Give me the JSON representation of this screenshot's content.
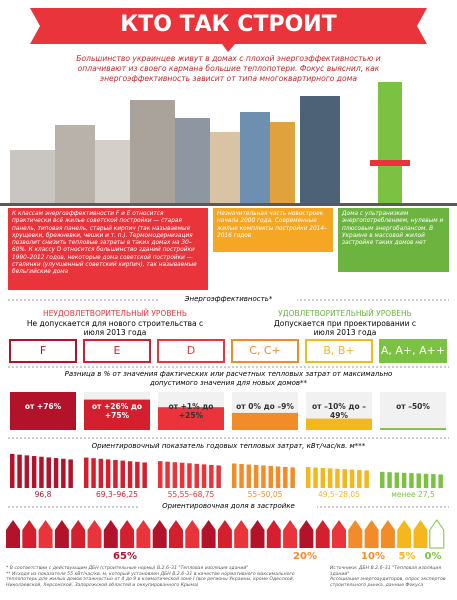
{
  "header": {
    "title": "КТО ТАК СТРОИТ",
    "subtitle": "Большинство украинцев живут в домах с плохой энергоэффективностью и оплачивают из своего кармана большие теплопотери. Фокус выяснил, как энергоэффективность зависит от типа многоквартирного дома"
  },
  "notes": [
    "К классам энергоэффективности F и E относится практически всё жилье советской постройки — старая панель, типовая панель, старый кирпич (так называемые хрущевки, брежневки, чешки и т. п.). Термомодернизация позволит снизить тепловые затраты в таких домах на 30–60%. К классу D относится большинство зданий постройки 1990–2012 годов, некоторые дома советской постройки — сталинки (улучшенный советский кирпич), так называемые бельгийские дома",
    "Незначительная часть новостроек начала 2000 года. Современные жилые комплексы постройки 2014–2016 годов",
    "Дома с ультранизким энергопотреблением, нулевым и плюсовым энергобалансом. В Украине в массовой жилой застройке таких домов нет"
  ],
  "energy": {
    "title": "Энергоэффективность*",
    "bad_label": "НЕУДОВЛЕТВОРИТЕЛЬНЫЙ УРОВЕНЬ",
    "bad_note": "Не допускается для нового строительства с июля 2013 года",
    "good_label": "УДОВЛЕТВОРИТЕЛЬНЫЙ УРОВЕНЬ",
    "good_note": "Допускается при проектировании с июля 2013 года",
    "classes": [
      "F",
      "E",
      "D",
      "C, C+",
      "B, B+",
      "A, A+, A++"
    ]
  },
  "deviation": {
    "title": "Разница в % от значения фактических или расчетных тепловых затрат от максимально допустимого значения для новых домов**",
    "labels": [
      "от +76%",
      "от +26% до +75%",
      "от +1% до +25%",
      "от 0% до –9%",
      "от –10% до –49%",
      "от –50%"
    ]
  },
  "heat": {
    "title": "Ориентировочный показатель годовых тепловых затрат, кВт/час/кв. м***",
    "labels": [
      "96,8",
      "69,3–96,25",
      "55,55–68,75",
      "55–50,05",
      "49,5–28,05",
      "менее 27,5"
    ]
  },
  "share": {
    "title": "Ориентировочная доля в застройке",
    "labels": [
      "65%",
      "20%",
      "10%",
      "5%",
      "0%"
    ]
  },
  "footnotes": {
    "left": [
      "* В соответствии с действующим ДБН (строительные нормы) В.2.6–31 \"Тепловая изоляция зданий\"",
      "** Исходя из показателя 55 кВт/час/кв. м, который установлен ДБН В.2.6–31 в качестве нормативного максимального теплопотерь для жилых домов этажностью от 4 до 9 в климатической зоне I (все регионы Украины, кроме Одесской, Николаевской, Херсонской, Запорожской областей и оккупированного Крыма)"
    ],
    "right": [
      "Источники: ДБН В.2.6–31 \"Тепловая изоляция зданий\"",
      "Ассоциация энергоаудиторов, опрос экспертов строительного рынка, данные Фокуса"
    ]
  }
}
